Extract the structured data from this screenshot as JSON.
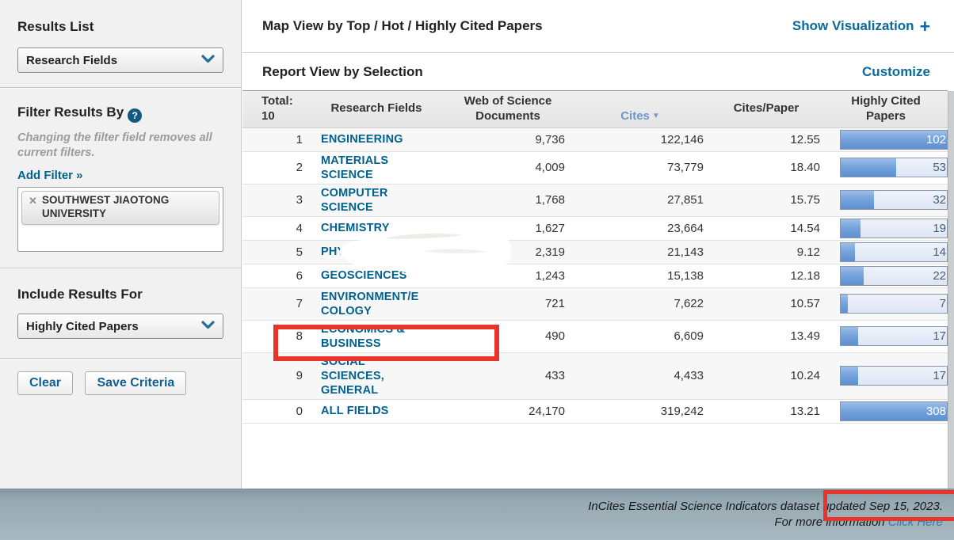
{
  "sidebar": {
    "results_list": {
      "title": "Results List",
      "dropdown_value": "Research Fields",
      "dropdown_icon": "chevron-down-icon"
    },
    "filter": {
      "title": "Filter Results By",
      "help_icon": "question-mark-icon",
      "help_glyph": "?",
      "note": "Changing the filter field removes all current filters.",
      "add_filter_label": "Add Filter »",
      "tags": [
        {
          "remove_icon": "x-icon",
          "remove_glyph": "✕",
          "label": "SOUTHWEST JIAOTONG UNIVERSITY"
        }
      ]
    },
    "include": {
      "title": "Include Results For",
      "dropdown_value": "Highly Cited Papers",
      "dropdown_icon": "chevron-down-icon"
    },
    "buttons": {
      "clear": "Clear",
      "save": "Save Criteria"
    }
  },
  "main": {
    "map_view_title": "Map View by Top / Hot / Highly Cited Papers",
    "show_visualization_label": "Show Visualization",
    "show_visualization_icon": "plus-icon",
    "plus_glyph": "+",
    "report_view_title": "Report View by Selection",
    "customize_label": "Customize"
  },
  "table": {
    "total_label": "Total:\n10",
    "headers": {
      "field": "Research Fields",
      "wos_documents": "Web of Science\nDocuments",
      "cites": "Cites",
      "cites_per_paper": "Cites/Paper",
      "highly_cited": "Highly Cited\nPapers"
    },
    "sort": {
      "column": "Cites",
      "direction": "desc",
      "icon": "triangle-down-icon",
      "glyph": "▼"
    },
    "bar_scale_max": 102,
    "rows": [
      {
        "rank": "1",
        "field": "ENGINEERING",
        "wos_documents": "9,736",
        "cites": "122,146",
        "cites_per_paper": "12.55",
        "highly_cited": 102
      },
      {
        "rank": "2",
        "field": "MATERIALS\nSCIENCE",
        "wos_documents": "4,009",
        "cites": "73,779",
        "cites_per_paper": "18.40",
        "highly_cited": 53
      },
      {
        "rank": "3",
        "field": "COMPUTER\nSCIENCE",
        "wos_documents": "1,768",
        "cites": "27,851",
        "cites_per_paper": "15.75",
        "highly_cited": 32
      },
      {
        "rank": "4",
        "field": "CHEMISTRY",
        "wos_documents": "1,627",
        "cites": "23,664",
        "cites_per_paper": "14.54",
        "highly_cited": 19
      },
      {
        "rank": "5",
        "field": "PHYSICS",
        "wos_documents": "2,319",
        "cites": "21,143",
        "cites_per_paper": "9.12",
        "highly_cited": 14
      },
      {
        "rank": "6",
        "field": "GEOSCIENCES",
        "wos_documents": "1,243",
        "cites": "15,138",
        "cites_per_paper": "12.18",
        "highly_cited": 22
      },
      {
        "rank": "7",
        "field": "ENVIRONMENT/E\nCOLOGY",
        "wos_documents": "721",
        "cites": "7,622",
        "cites_per_paper": "10.57",
        "highly_cited": 7
      },
      {
        "rank": "8",
        "field": "ECONOMICS &\nBUSINESS",
        "wos_documents": "490",
        "cites": "6,609",
        "cites_per_paper": "13.49",
        "highly_cited": 17,
        "annotated": true
      },
      {
        "rank": "9",
        "field": "SOCIAL\nSCIENCES,\nGENERAL",
        "wos_documents": "433",
        "cites": "4,433",
        "cites_per_paper": "10.24",
        "highly_cited": 17
      },
      {
        "rank": "0",
        "field": "ALL FIELDS",
        "wos_documents": "24,170",
        "cites": "319,242",
        "cites_per_paper": "13.21",
        "highly_cited": 308
      }
    ]
  },
  "footer": {
    "dataset_note": "InCites Essential Science Indicators dataset updated Sep 15, 2023.",
    "more_info_text": "For more information ",
    "more_info_link": "Click Here"
  },
  "colors": {
    "field_link_teal": "#00618f",
    "action_link_teal": "#0b6a9a",
    "sorted_header_blue": "#6f96c8",
    "bar_fill_blue": "#6f9fd8",
    "bar_track": "#e3eaf6",
    "footer_bg": "#9fb1ba",
    "annotation_red": "#e8342b"
  }
}
